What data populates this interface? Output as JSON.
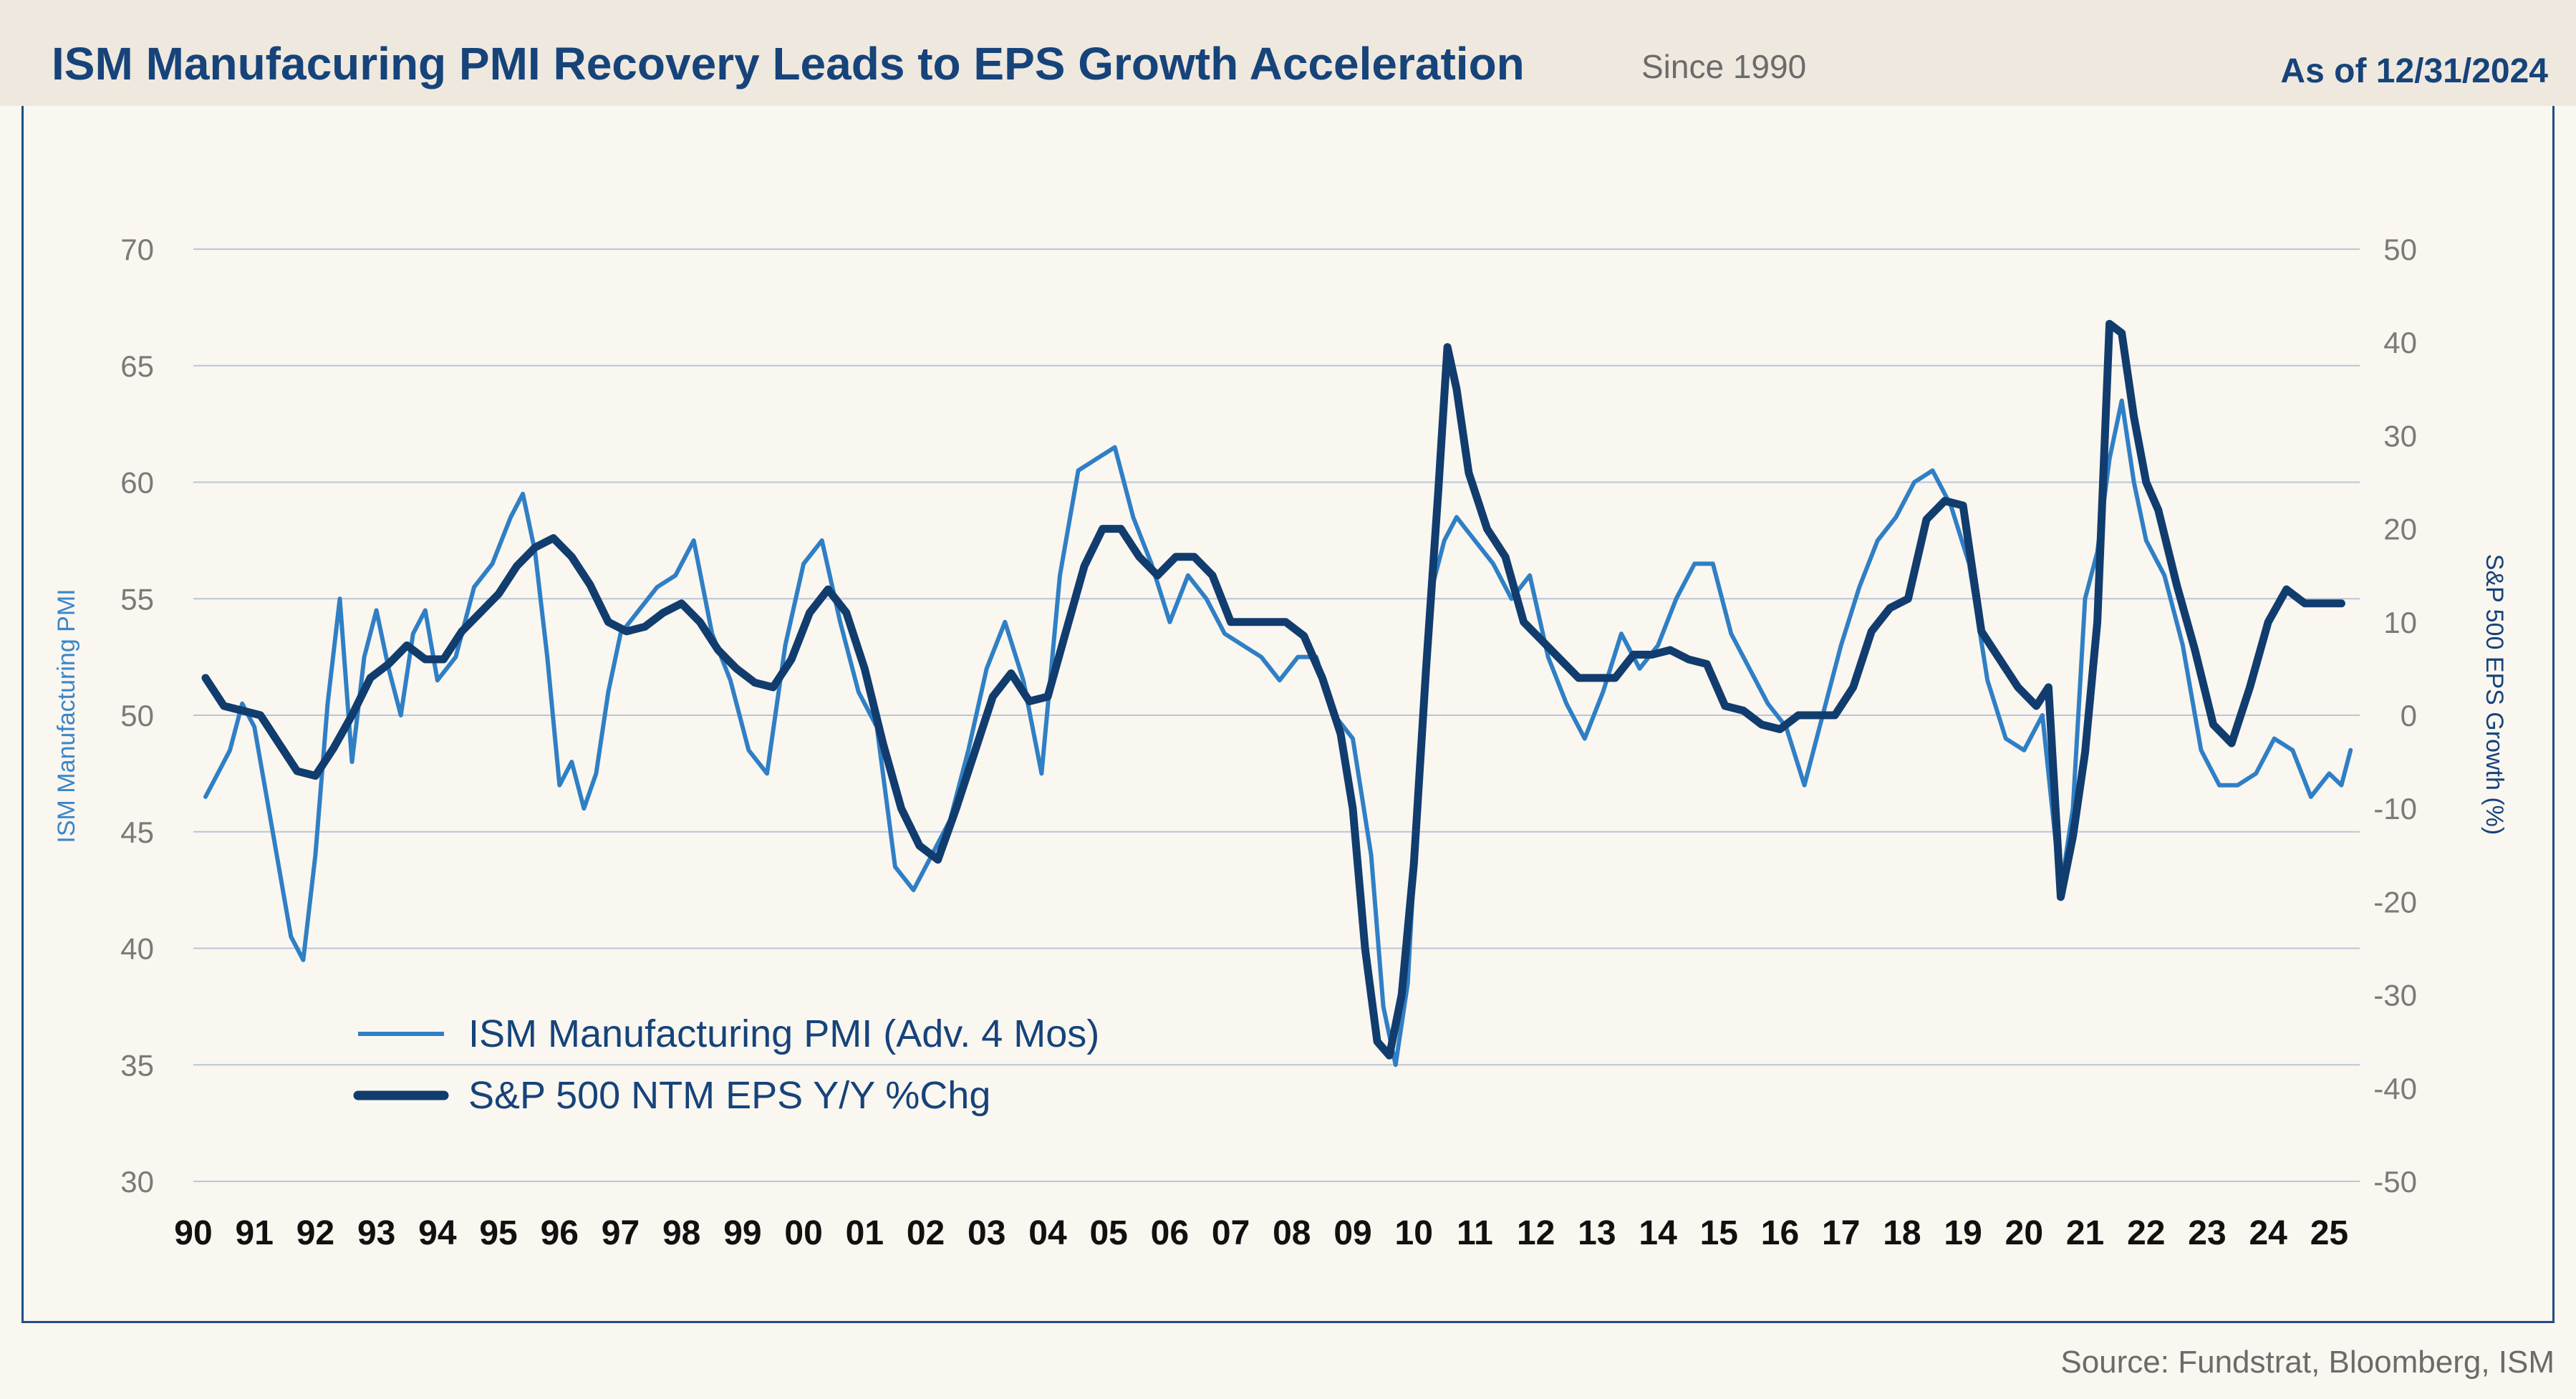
{
  "header": {
    "title": "ISM Manufacuring PMI Recovery Leads to EPS Growth Acceleration",
    "subtitle": "Since 1990",
    "as_of": "As of 12/31/2024"
  },
  "footer": {
    "source": "Source:  Fundstrat, Bloomberg, ISM"
  },
  "colors": {
    "pmi": "#2f7fc5",
    "eps": "#113c6e",
    "header_bg": "#efe8de",
    "page_bg": "#faf6f0",
    "grid": "#b9c6d6"
  },
  "chart_data": {
    "type": "line",
    "xlabel": "",
    "y_left_label": "ISM Manufacturing PMI",
    "y_right_label": "S&P 500 EPS Growth (%)",
    "y_left_lim": [
      30,
      70
    ],
    "y_right_lim": [
      -50,
      50
    ],
    "y_left_ticks": [
      "70",
      "65",
      "60",
      "55",
      "50",
      "45",
      "40",
      "35",
      "30"
    ],
    "y_right_ticks": [
      "50",
      "40",
      "30",
      "20",
      "10",
      "0",
      "-10",
      "-20",
      "-30",
      "-40",
      "-50"
    ],
    "x_range": [
      1990,
      2025.5
    ],
    "x_ticks": [
      "90",
      "91",
      "92",
      "93",
      "94",
      "95",
      "96",
      "97",
      "98",
      "99",
      "00",
      "01",
      "02",
      "03",
      "04",
      "05",
      "06",
      "07",
      "08",
      "09",
      "10",
      "11",
      "12",
      "13",
      "14",
      "15",
      "16",
      "17",
      "18",
      "19",
      "20",
      "21",
      "22",
      "23",
      "24",
      "25"
    ],
    "grid": true,
    "legend_position": "bottom-left",
    "series": [
      {
        "name": "ISM Manufacturing PMI (Adv. 4 Mos)",
        "axis": "left",
        "color": "#2f7fc5",
        "x": [
          1990.2,
          1990.4,
          1990.6,
          1990.8,
          1991.0,
          1991.2,
          1991.4,
          1991.6,
          1991.8,
          1992.0,
          1992.2,
          1992.4,
          1992.6,
          1992.8,
          1993.0,
          1993.2,
          1993.4,
          1993.6,
          1993.8,
          1994.0,
          1994.3,
          1994.6,
          1994.9,
          1995.2,
          1995.4,
          1995.6,
          1995.8,
          1996.0,
          1996.2,
          1996.4,
          1996.6,
          1996.8,
          1997.0,
          1997.3,
          1997.6,
          1997.9,
          1998.2,
          1998.5,
          1998.8,
          1999.1,
          1999.4,
          1999.7,
          2000.0,
          2000.3,
          2000.6,
          2000.9,
          2001.2,
          2001.5,
          2001.8,
          2002.1,
          2002.4,
          2002.7,
          2003.0,
          2003.3,
          2003.6,
          2003.9,
          2004.2,
          2004.5,
          2004.8,
          2005.1,
          2005.4,
          2005.7,
          2006.0,
          2006.3,
          2006.6,
          2006.9,
          2007.2,
          2007.5,
          2007.8,
          2008.1,
          2008.4,
          2008.7,
          2009.0,
          2009.3,
          2009.5,
          2009.7,
          2009.9,
          2010.1,
          2010.3,
          2010.5,
          2010.7,
          2011.0,
          2011.3,
          2011.6,
          2011.9,
          2012.2,
          2012.5,
          2012.8,
          2013.1,
          2013.4,
          2013.7,
          2014.0,
          2014.3,
          2014.6,
          2014.9,
          2015.2,
          2015.5,
          2015.8,
          2016.1,
          2016.4,
          2016.7,
          2017.0,
          2017.3,
          2017.6,
          2017.9,
          2018.2,
          2018.5,
          2018.8,
          2019.1,
          2019.4,
          2019.7,
          2020.0,
          2020.3,
          2020.6,
          2020.8,
          2021.0,
          2021.2,
          2021.4,
          2021.6,
          2021.8,
          2022.0,
          2022.3,
          2022.6,
          2022.9,
          2023.2,
          2023.5,
          2023.8,
          2024.1,
          2024.4,
          2024.7,
          2025.0,
          2025.2,
          2025.35
        ],
        "y": [
          46.5,
          47.5,
          48.5,
          50.5,
          49.5,
          46.5,
          43.5,
          40.5,
          39.5,
          44.0,
          50.5,
          55.0,
          48.0,
          52.5,
          54.5,
          52.0,
          50.0,
          53.5,
          54.5,
          51.5,
          52.5,
          55.5,
          56.5,
          58.5,
          59.5,
          57.0,
          52.5,
          47.0,
          48.0,
          46.0,
          47.5,
          51.0,
          53.5,
          54.5,
          55.5,
          56.0,
          57.5,
          53.5,
          51.5,
          48.5,
          47.5,
          53.0,
          56.5,
          57.5,
          54.0,
          51.0,
          49.5,
          43.5,
          42.5,
          44.0,
          45.5,
          48.5,
          52.0,
          54.0,
          51.5,
          47.5,
          56.0,
          60.5,
          61.0,
          61.5,
          58.5,
          56.5,
          54.0,
          56.0,
          55.0,
          53.5,
          53.0,
          52.5,
          51.5,
          52.5,
          52.5,
          50.0,
          49.0,
          44.0,
          37.5,
          35.0,
          38.5,
          48.0,
          55.5,
          57.5,
          58.5,
          57.5,
          56.5,
          55.0,
          56.0,
          52.5,
          50.5,
          49.0,
          51.0,
          53.5,
          52.0,
          53.0,
          55.0,
          56.5,
          56.5,
          53.5,
          52.0,
          50.5,
          49.5,
          47.0,
          50.0,
          53.0,
          55.5,
          57.5,
          58.5,
          60.0,
          60.5,
          59.0,
          56.5,
          51.5,
          49.0,
          48.5,
          50.0,
          42.5,
          46.0,
          55.0,
          57.0,
          61.0,
          63.5,
          60.0,
          57.5,
          56.0,
          53.0,
          48.5,
          47.0,
          47.0,
          47.5,
          49.0,
          48.5,
          46.5,
          47.5,
          47.0,
          48.5
        ]
      },
      {
        "name": "S&P 500 NTM EPS Y/Y %Chg",
        "axis": "right",
        "color": "#113c6e",
        "x": [
          1990.2,
          1990.5,
          1990.8,
          1991.1,
          1991.4,
          1991.7,
          1992.0,
          1992.3,
          1992.6,
          1992.9,
          1993.2,
          1993.5,
          1993.8,
          1994.1,
          1994.4,
          1994.7,
          1995.0,
          1995.3,
          1995.6,
          1995.9,
          1996.2,
          1996.5,
          1996.8,
          1997.1,
          1997.4,
          1997.7,
          1998.0,
          1998.3,
          1998.6,
          1998.9,
          1999.2,
          1999.5,
          1999.8,
          2000.1,
          2000.4,
          2000.7,
          2001.0,
          2001.3,
          2001.6,
          2001.9,
          2002.2,
          2002.5,
          2002.8,
          2003.1,
          2003.4,
          2003.7,
          2004.0,
          2004.3,
          2004.6,
          2004.9,
          2005.2,
          2005.5,
          2005.8,
          2006.1,
          2006.4,
          2006.7,
          2007.0,
          2007.3,
          2007.6,
          2007.9,
          2008.2,
          2008.5,
          2008.8,
          2009.0,
          2009.2,
          2009.4,
          2009.6,
          2009.8,
          2010.0,
          2010.2,
          2010.4,
          2010.55,
          2010.7,
          2010.9,
          2011.2,
          2011.5,
          2011.8,
          2012.1,
          2012.4,
          2012.7,
          2013.0,
          2013.3,
          2013.6,
          2013.9,
          2014.2,
          2014.5,
          2014.8,
          2015.1,
          2015.4,
          2015.7,
          2016.0,
          2016.3,
          2016.6,
          2016.9,
          2017.2,
          2017.5,
          2017.8,
          2018.1,
          2018.4,
          2018.7,
          2019.0,
          2019.3,
          2019.6,
          2019.9,
          2020.2,
          2020.4,
          2020.6,
          2020.8,
          2021.0,
          2021.2,
          2021.4,
          2021.6,
          2021.8,
          2022.0,
          2022.2,
          2022.5,
          2022.8,
          2023.1,
          2023.4,
          2023.7,
          2024.0,
          2024.3,
          2024.6,
          2024.9,
          2025.2
        ],
        "y": [
          4.0,
          1.0,
          0.5,
          0.0,
          -3.0,
          -6.0,
          -6.5,
          -3.5,
          0.0,
          4.0,
          5.5,
          7.5,
          6.0,
          6.0,
          9.0,
          11.0,
          13.0,
          16.0,
          18.0,
          19.0,
          17.0,
          14.0,
          10.0,
          9.0,
          9.5,
          11.0,
          12.0,
          10.0,
          7.0,
          5.0,
          3.5,
          3.0,
          6.0,
          11.0,
          13.5,
          11.0,
          5.0,
          -3.0,
          -10.0,
          -14.0,
          -15.5,
          -10.0,
          -4.0,
          2.0,
          4.5,
          1.5,
          2.0,
          9.0,
          16.0,
          20.0,
          20.0,
          17.0,
          15.0,
          17.0,
          17.0,
          15.0,
          10.0,
          10.0,
          10.0,
          10.0,
          8.5,
          4.0,
          -2.0,
          -10.0,
          -25.0,
          -35.0,
          -36.5,
          -30.0,
          -16.0,
          5.0,
          24.0,
          39.5,
          35.0,
          26.0,
          20.0,
          17.0,
          10.0,
          8.0,
          6.0,
          4.0,
          4.0,
          4.0,
          6.5,
          6.5,
          7.0,
          6.0,
          5.5,
          1.0,
          0.5,
          -1.0,
          -1.5,
          0.0,
          0.0,
          0.0,
          3.0,
          9.0,
          11.5,
          12.5,
          21.0,
          23.0,
          22.5,
          9.0,
          6.0,
          3.0,
          1.0,
          3.0,
          -19.5,
          -13.0,
          -4.0,
          10.0,
          42.0,
          41.0,
          32.0,
          25.0,
          22.0,
          14.0,
          7.0,
          -1.0,
          -3.0,
          3.0,
          10.0,
          13.5,
          12.0,
          12.0,
          12.0
        ]
      }
    ]
  }
}
